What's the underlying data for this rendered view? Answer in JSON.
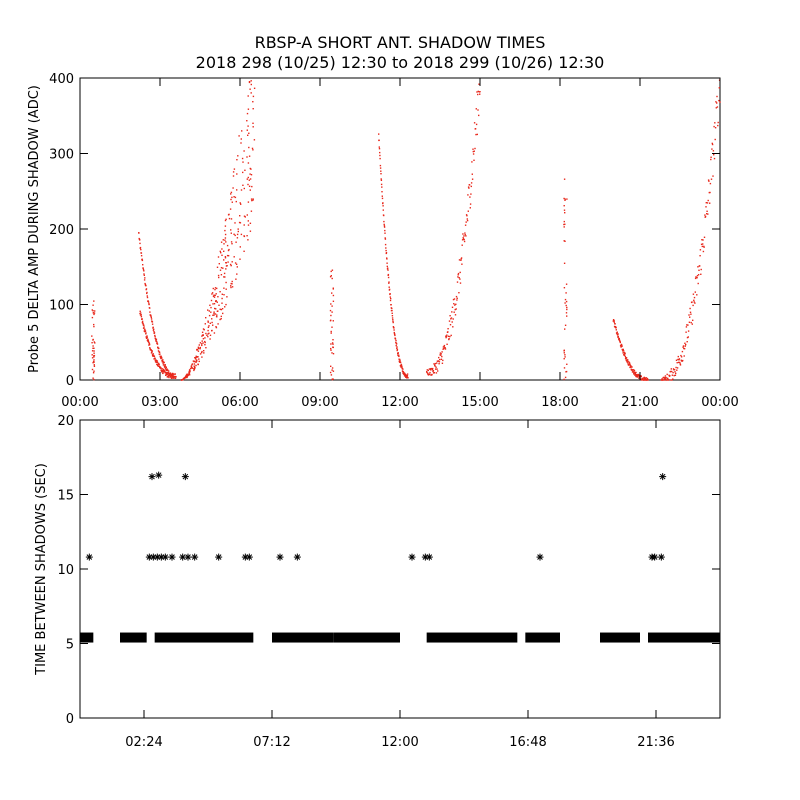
{
  "title": {
    "line1": "RBSP-A SHORT ANT. SHADOW TIMES",
    "line2": "2018 298 (10/25) 12:30 to 2018 299 (10/26) 12:30"
  },
  "colors": {
    "panel1_points": "#e8281c",
    "panel2_points": "#000000",
    "axes": "#000000",
    "background": "#ffffff"
  },
  "chart_data": [
    {
      "type": "scatter",
      "ylabel": "Probe 5 DELTA AMP DURING SHADOW (ADC)",
      "xlabel": "",
      "ylim": [
        0,
        400
      ],
      "xlim": [
        "00:00",
        "24:00"
      ],
      "xticks": [
        "00:00",
        "03:00",
        "06:00",
        "09:00",
        "12:00",
        "15:00",
        "18:00",
        "21:00",
        "00:00"
      ],
      "yticks": [
        "0",
        "100",
        "200",
        "300",
        "400"
      ],
      "grid": false,
      "marker": "red dots",
      "features": [
        {
          "x": [
            0.5,
            0.65
          ],
          "y": [
            0,
            105
          ],
          "kind": "short column"
        },
        {
          "x": [
            2.2,
            3.6
          ],
          "y": [
            195,
            5
          ],
          "kind": "decaying arc"
        },
        {
          "x": [
            2.25,
            3.5
          ],
          "y": [
            90,
            5
          ],
          "kind": "decaying arc"
        },
        {
          "x": [
            3.8,
            6.6
          ],
          "y": [
            0,
            400
          ],
          "kind": "rising scatter"
        },
        {
          "x": [
            9.45
          ],
          "y": [
            150
          ],
          "kind": "short column"
        },
        {
          "x": [
            11.2,
            12.3
          ],
          "y": [
            325,
            5
          ],
          "kind": "decaying arc"
        },
        {
          "x": [
            13.0,
            15.0
          ],
          "y": [
            10,
            400
          ],
          "kind": "rising arc"
        },
        {
          "x": [
            18.2
          ],
          "y": [
            275
          ],
          "kind": "short column"
        },
        {
          "x": [
            20.0,
            21.3
          ],
          "y": [
            80,
            0
          ],
          "kind": "decaying arc"
        },
        {
          "x": [
            21.8,
            24.0
          ],
          "y": [
            0,
            400
          ],
          "kind": "rising arc"
        }
      ]
    },
    {
      "type": "scatter",
      "ylabel": "TIME BETWEEN SHADOWS (SEC)",
      "xlabel": "",
      "ylim": [
        0,
        20
      ],
      "xticks": [
        "02:24",
        "07:12",
        "12:00",
        "16:48",
        "21:36"
      ],
      "yticks": [
        "0",
        "5",
        "10",
        "15",
        "20"
      ],
      "grid": false,
      "marker": "asterisk",
      "baseline_value": 5.4,
      "baseline_segments": [
        [
          0.0,
          0.5
        ],
        [
          1.5,
          2.5
        ],
        [
          2.8,
          6.5
        ],
        [
          7.2,
          9.5
        ],
        [
          9.5,
          12.0
        ],
        [
          13.0,
          16.4
        ],
        [
          16.7,
          18.0
        ],
        [
          19.5,
          21.0
        ],
        [
          21.3,
          24.0
        ]
      ],
      "points": [
        {
          "x": 0.35,
          "y": 10.8
        },
        {
          "x": 2.7,
          "y": 16.2
        },
        {
          "x": 2.95,
          "y": 16.3
        },
        {
          "x": 3.95,
          "y": 16.2
        },
        {
          "x": 2.6,
          "y": 10.8
        },
        {
          "x": 2.75,
          "y": 10.8
        },
        {
          "x": 2.9,
          "y": 10.8
        },
        {
          "x": 3.05,
          "y": 10.8
        },
        {
          "x": 3.2,
          "y": 10.8
        },
        {
          "x": 3.45,
          "y": 10.8
        },
        {
          "x": 3.85,
          "y": 10.8
        },
        {
          "x": 4.05,
          "y": 10.8
        },
        {
          "x": 4.3,
          "y": 10.8
        },
        {
          "x": 5.2,
          "y": 10.8
        },
        {
          "x": 6.2,
          "y": 10.8
        },
        {
          "x": 6.35,
          "y": 10.8
        },
        {
          "x": 7.5,
          "y": 10.8
        },
        {
          "x": 8.15,
          "y": 10.8
        },
        {
          "x": 12.45,
          "y": 10.8
        },
        {
          "x": 12.95,
          "y": 10.8
        },
        {
          "x": 13.1,
          "y": 10.8
        },
        {
          "x": 17.25,
          "y": 10.8
        },
        {
          "x": 21.45,
          "y": 10.8
        },
        {
          "x": 21.55,
          "y": 10.8
        },
        {
          "x": 21.8,
          "y": 10.8
        },
        {
          "x": 21.85,
          "y": 16.2
        }
      ]
    }
  ]
}
